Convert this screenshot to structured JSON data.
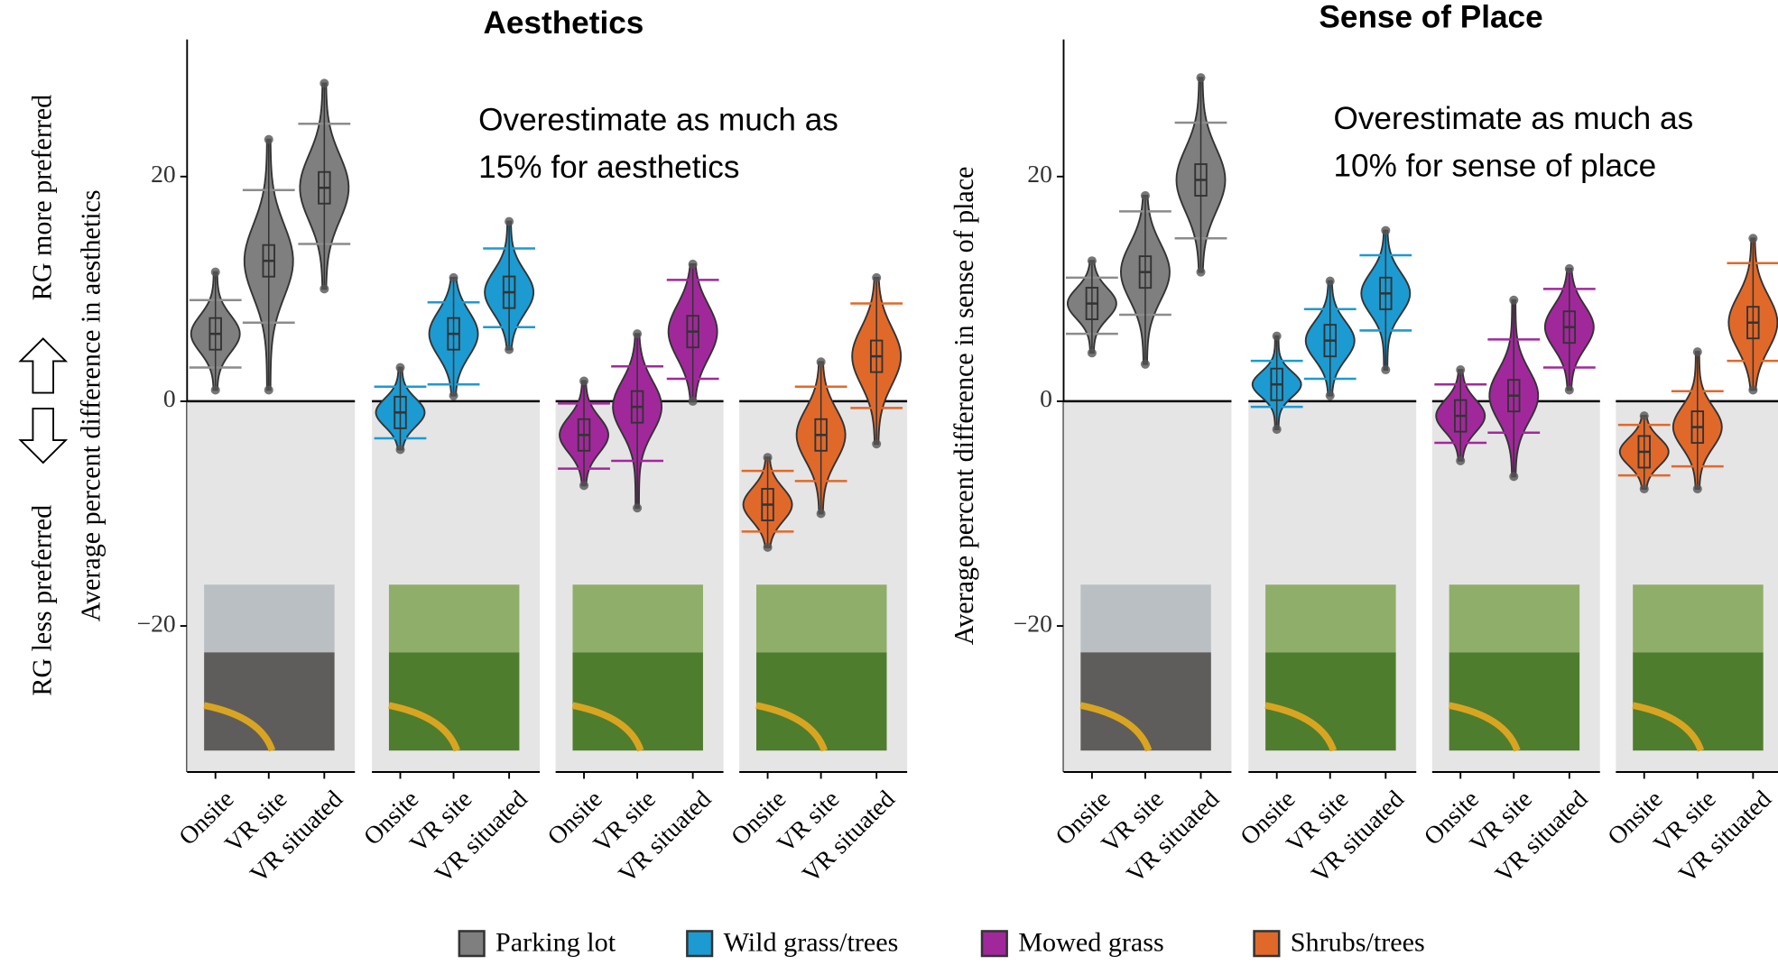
{
  "legend": {
    "items": [
      {
        "name": "Parking lot",
        "color": "#7f7f7f",
        "line": "#8c8c8c"
      },
      {
        "name": "Wild grass/trees",
        "color": "#1b9bd1",
        "line": "#1b9bd1"
      },
      {
        "name": "Mowed grass",
        "color": "#a1289b",
        "line": "#a1289b"
      },
      {
        "name": "Shrubs/trees",
        "color": "#e0692a",
        "line": "#e0692a"
      }
    ]
  },
  "side_labels": {
    "top": "RG more preferred",
    "bottom": "RG less preferred"
  },
  "chart_data": [
    {
      "type": "violin",
      "title": "Aesthetics",
      "ylabel": "Average percent difference in aesthetics",
      "annotation": [
        "Overestimate as much as",
        "15% for aesthetics"
      ],
      "categories": [
        "Onsite",
        "VR site",
        "VR situated"
      ],
      "ylim": [
        -33,
        32.2
      ],
      "yticks": [
        {
          "value": -20,
          "label": "−20"
        },
        0,
        20
      ],
      "facets": [
        {
          "median": [
            6,
            12.5,
            19
          ],
          "lower": [
            3,
            7,
            14
          ],
          "upper": [
            9,
            18.8,
            24.7
          ],
          "min": [
            1,
            1,
            10
          ],
          "max": [
            11.5,
            23.3,
            28.3
          ]
        },
        {
          "median": [
            -1,
            6,
            9.7
          ],
          "lower": [
            -3.3,
            1.5,
            6.6
          ],
          "upper": [
            1.3,
            8.8,
            13.6
          ],
          "min": [
            -4.3,
            0.5,
            4.6
          ],
          "max": [
            3,
            11,
            16
          ]
        },
        {
          "median": [
            -3,
            -0.5,
            6.2
          ],
          "lower": [
            -6,
            -5.3,
            2
          ],
          "upper": [
            -0.2,
            3.1,
            10.8
          ],
          "min": [
            -7.5,
            -9.5,
            0
          ],
          "max": [
            1.8,
            6,
            12.2
          ]
        },
        {
          "median": [
            -9.2,
            -3,
            4
          ],
          "lower": [
            -11.6,
            -7.1,
            -0.6
          ],
          "upper": [
            -6.2,
            1.3,
            8.7
          ],
          "min": [
            -13,
            -10,
            -3.8
          ],
          "max": [
            -5,
            3.5,
            11
          ]
        }
      ]
    },
    {
      "type": "violin",
      "title": "Sense of Place",
      "ylabel": "Average percent difference in sense of place",
      "annotation": [
        "Overestimate as much as",
        "10% for sense of place"
      ],
      "categories": [
        "Onsite",
        "VR site",
        "VR situated"
      ],
      "ylim": [
        -33,
        32.2
      ],
      "yticks": [
        {
          "value": -20,
          "label": "−20"
        },
        0,
        20
      ],
      "facets": [
        {
          "median": [
            8.7,
            11.5,
            19.7
          ],
          "lower": [
            6,
            7.7,
            14.5
          ],
          "upper": [
            11,
            16.9,
            24.8
          ],
          "min": [
            4.3,
            3.3,
            11.5
          ],
          "max": [
            12.5,
            18.3,
            28.8
          ]
        },
        {
          "median": [
            1.5,
            5.4,
            9.6
          ],
          "lower": [
            -0.5,
            2,
            6.3
          ],
          "upper": [
            3.6,
            8.2,
            13
          ],
          "min": [
            -2.5,
            0.5,
            2.8
          ],
          "max": [
            5.8,
            10.7,
            15.2
          ]
        },
        {
          "median": [
            -1.3,
            0.5,
            6.6
          ],
          "lower": [
            -3.7,
            -2.8,
            3
          ],
          "upper": [
            1.5,
            5.5,
            10
          ],
          "min": [
            -5.3,
            -6.7,
            1
          ],
          "max": [
            2.8,
            9,
            11.8
          ]
        },
        {
          "median": [
            -4.5,
            -2.3,
            7
          ],
          "lower": [
            -6.6,
            -5.8,
            3.6
          ],
          "upper": [
            -2.1,
            0.9,
            12.3
          ],
          "min": [
            -7.8,
            -7.8,
            1
          ],
          "max": [
            -1.3,
            4.4,
            14.5
          ]
        }
      ]
    }
  ]
}
